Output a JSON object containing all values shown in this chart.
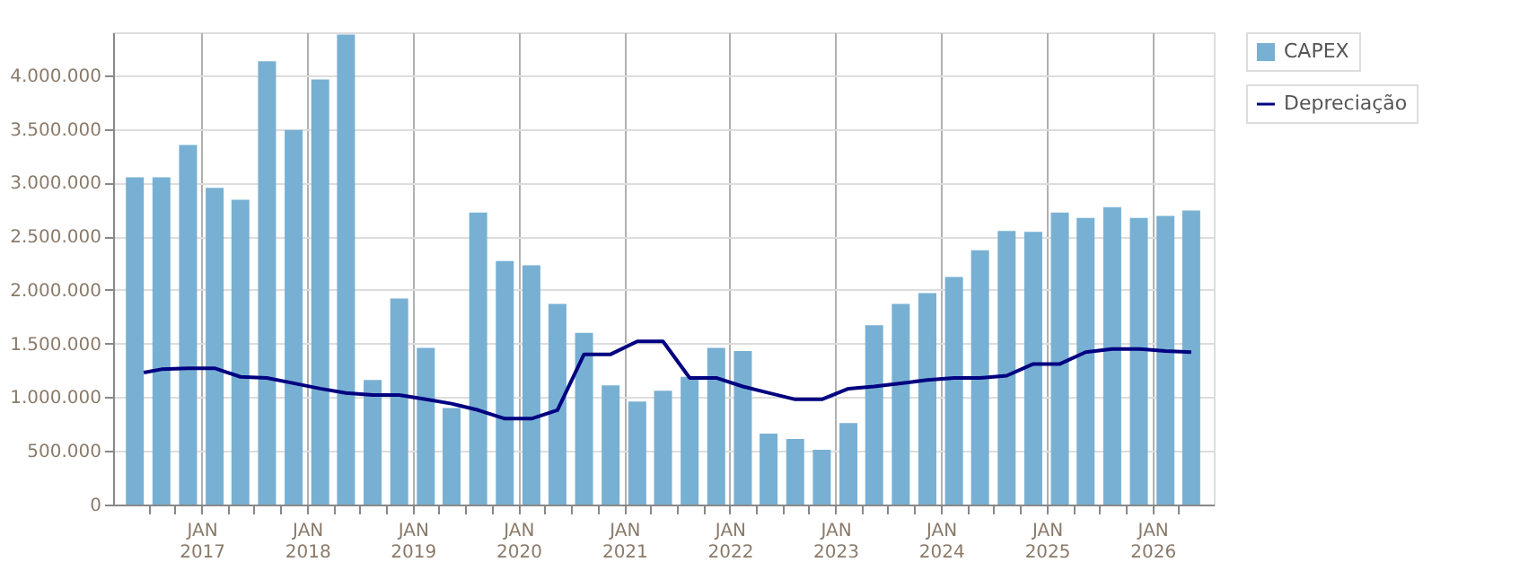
{
  "chart_data": {
    "type": "bar",
    "x": [
      "2016-05-15",
      "2016-08-15",
      "2016-11-15",
      "2017-02-15",
      "2017-05-15",
      "2017-08-15",
      "2017-11-15",
      "2018-02-15",
      "2018-05-15",
      "2018-08-15",
      "2018-11-15",
      "2019-02-15",
      "2019-05-15",
      "2019-08-15",
      "2019-11-15",
      "2020-02-15",
      "2020-05-15",
      "2020-08-15",
      "2020-11-15",
      "2021-02-15",
      "2021-05-15",
      "2021-08-15",
      "2021-11-15",
      "2022-02-15",
      "2022-05-15",
      "2022-08-15",
      "2022-11-15",
      "2023-02-15",
      "2023-05-15",
      "2023-08-15",
      "2023-11-15",
      "2024-02-15",
      "2024-05-15",
      "2024-08-15",
      "2024-11-15",
      "2025-02-15",
      "2025-05-15",
      "2025-08-15",
      "2025-11-15",
      "2026-02-15",
      "2026-05-15"
    ],
    "series": [
      {
        "name": "CAPEX",
        "color": "#78b0d3",
        "values": [
          3050000,
          3050000,
          3350000,
          2950000,
          2840000,
          4130000,
          3490000,
          3960000,
          4380000,
          1160000,
          1920000,
          1460000,
          900000,
          2720000,
          2270000,
          2230000,
          1870000,
          1600000,
          1110000,
          960000,
          1060000,
          1190000,
          1460000,
          1430000,
          660000,
          610000,
          510000,
          760000,
          1670000,
          1870000,
          1970000,
          2120000,
          2370000,
          2550000,
          2540000,
          2720000,
          2670000,
          2770000,
          2670000,
          2690000,
          2740000
        ]
      },
      {
        "name": "Depreciação",
        "type": "line",
        "color": "#000080",
        "line_style": "solid",
        "marker": "none",
        "x": [
          "2016-06-15",
          "2016-08-15",
          "2016-11-15",
          "2017-02-15",
          "2017-05-15",
          "2017-08-15",
          "2017-11-15",
          "2018-02-15",
          "2018-05-15",
          "2018-08-15",
          "2018-11-15",
          "2019-02-15",
          "2019-05-15",
          "2019-08-15",
          "2019-11-15",
          "2020-02-15",
          "2020-05-15",
          "2020-08-15",
          "2020-11-15",
          "2021-02-15",
          "2021-05-15",
          "2021-08-15",
          "2021-11-15",
          "2022-02-15",
          "2022-05-15",
          "2022-08-15",
          "2022-11-15",
          "2023-02-15",
          "2023-05-15",
          "2023-08-15",
          "2023-11-15",
          "2024-02-15",
          "2024-05-15",
          "2024-08-15",
          "2024-11-15",
          "2025-02-15",
          "2025-05-15",
          "2025-08-15",
          "2025-11-15",
          "2026-02-15",
          "2026-05-15"
        ],
        "values": [
          1230000,
          1260000,
          1270000,
          1270000,
          1190000,
          1180000,
          1130000,
          1080000,
          1040000,
          1020000,
          1020000,
          980000,
          940000,
          880000,
          800000,
          800000,
          880000,
          1400000,
          1400000,
          1520000,
          1520000,
          1180000,
          1180000,
          1100000,
          1040000,
          980000,
          980000,
          1080000,
          1100000,
          1130000,
          1160000,
          1180000,
          1180000,
          1200000,
          1310000,
          1310000,
          1420000,
          1450000,
          1450000,
          1430000,
          1420000
        ]
      }
    ],
    "xlim": [
      "2016-04-01",
      "2026-07-01"
    ],
    "xticks": [
      {
        "value": "2016-07-01",
        "label": null
      },
      {
        "value": "2016-10-01",
        "label": null
      },
      {
        "value": "2017-01-01",
        "label": "JAN 2017"
      },
      {
        "value": "2017-04-01",
        "label": null
      },
      {
        "value": "2017-07-01",
        "label": null
      },
      {
        "value": "2017-10-01",
        "label": null
      },
      {
        "value": "2018-01-01",
        "label": "JAN 2018"
      },
      {
        "value": "2018-04-01",
        "label": null
      },
      {
        "value": "2018-07-01",
        "label": null
      },
      {
        "value": "2018-10-01",
        "label": null
      },
      {
        "value": "2019-01-01",
        "label": "JAN 2019"
      },
      {
        "value": "2019-04-01",
        "label": null
      },
      {
        "value": "2019-07-01",
        "label": null
      },
      {
        "value": "2019-10-01",
        "label": null
      },
      {
        "value": "2020-01-01",
        "label": "JAN 2020"
      },
      {
        "value": "2020-04-01",
        "label": null
      },
      {
        "value": "2020-07-01",
        "label": null
      },
      {
        "value": "2020-10-01",
        "label": null
      },
      {
        "value": "2021-01-01",
        "label": "JAN 2021"
      },
      {
        "value": "2021-04-01",
        "label": null
      },
      {
        "value": "2021-07-01",
        "label": null
      },
      {
        "value": "2021-10-01",
        "label": null
      },
      {
        "value": "2022-01-01",
        "label": "JAN 2022"
      },
      {
        "value": "2022-04-01",
        "label": null
      },
      {
        "value": "2022-07-01",
        "label": null
      },
      {
        "value": "2022-10-01",
        "label": null
      },
      {
        "value": "2023-01-01",
        "label": "JAN 2023"
      },
      {
        "value": "2023-04-01",
        "label": null
      },
      {
        "value": "2023-07-01",
        "label": null
      },
      {
        "value": "2023-10-01",
        "label": null
      },
      {
        "value": "2024-01-01",
        "label": "JAN 2024"
      },
      {
        "value": "2024-04-01",
        "label": null
      },
      {
        "value": "2024-07-01",
        "label": null
      },
      {
        "value": "2024-10-01",
        "label": null
      },
      {
        "value": "2025-01-01",
        "label": "JAN 2025"
      },
      {
        "value": "2025-04-01",
        "label": null
      },
      {
        "value": "2025-07-01",
        "label": null
      },
      {
        "value": "2025-10-01",
        "label": null
      },
      {
        "value": "2026-01-01",
        "label": "JAN 2026"
      },
      {
        "value": "2026-04-01",
        "label": null
      }
    ],
    "ylim": [
      0,
      4400000
    ],
    "yticks": [
      0,
      {
        "value": 500000,
        "label": "500.000"
      },
      {
        "value": 1000000,
        "label": "1.000.000"
      },
      {
        "value": 1500000,
        "label": "1.500.000"
      },
      {
        "value": 2000000,
        "label": "2.000.000"
      },
      {
        "value": 2500000,
        "label": "2.500.000"
      },
      {
        "value": 3000000,
        "label": "3.000.000"
      },
      {
        "value": 3500000,
        "label": "3.500.000"
      },
      {
        "value": 4000000,
        "label": "4.000.000"
      }
    ],
    "grid": true,
    "legend": "top right"
  }
}
